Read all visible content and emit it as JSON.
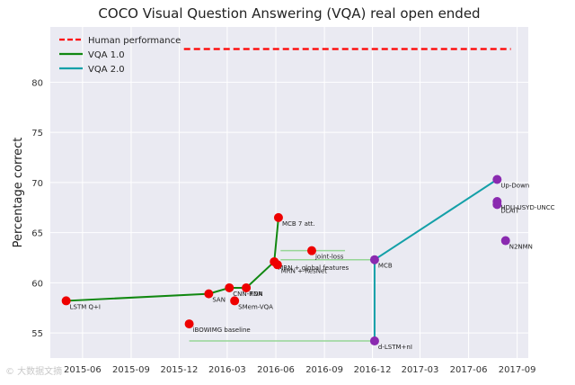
{
  "chart_data": {
    "type": "scatter",
    "title": "COCO Visual Question Answering (VQA) real open ended",
    "xlabel": "",
    "ylabel": "Percentage correct",
    "xlim": [
      "2015-04-01",
      "2017-09-22"
    ],
    "ylim": [
      52.5,
      85.5
    ],
    "x_ticks": [
      "2015-06",
      "2015-09",
      "2015-12",
      "2016-03",
      "2016-06",
      "2016-09",
      "2016-12",
      "2017-03",
      "2017-06",
      "2017-09"
    ],
    "y_ticks": [
      55,
      60,
      65,
      70,
      75,
      80
    ],
    "human_performance": {
      "label": "Human performance",
      "value": 83.3,
      "x_range": [
        "2015-12-10",
        "2017-08-20"
      ],
      "color": "#ff0000"
    },
    "legend": [
      {
        "label": "Human performance",
        "style": "dashed",
        "color": "#ff0000"
      },
      {
        "label": "VQA 1.0",
        "style": "solid",
        "color": "#118811"
      },
      {
        "label": "VQA 2.0",
        "style": "solid",
        "color": "#14a0a8"
      }
    ],
    "series": [
      {
        "name": "VQA 1.0",
        "color": "#118811",
        "line": [
          [
            "2015-05-01",
            58.2
          ],
          [
            "2016-01-26",
            58.9
          ],
          [
            "2016-03-05",
            59.5
          ],
          [
            "2016-04-06",
            59.5
          ],
          [
            "2016-05-29",
            62.1
          ],
          [
            "2016-06-06",
            66.5
          ]
        ],
        "points": [
          {
            "x": "2015-05-01",
            "y": 58.2,
            "label": "LSTM Q+I"
          },
          {
            "x": "2015-12-20",
            "y": 55.9,
            "label": "iBOWIMG baseline"
          },
          {
            "x": "2016-01-26",
            "y": 58.9,
            "label": "SAN"
          },
          {
            "x": "2016-03-05",
            "y": 59.5,
            "label": "CNN-RNN"
          },
          {
            "x": "2016-03-15",
            "y": 58.2,
            "label": "SMem-VQA"
          },
          {
            "x": "2016-04-06",
            "y": 59.5,
            "label": "FDA"
          },
          {
            "x": "2016-05-29",
            "y": 62.1,
            "label": "MRN + global features"
          },
          {
            "x": "2016-06-04",
            "y": 61.8,
            "label": "MRN + ResNet"
          },
          {
            "x": "2016-06-06",
            "y": 66.5,
            "label": "MCB 7 att."
          },
          {
            "x": "2016-08-08",
            "y": 63.2,
            "label": "joint-loss"
          }
        ]
      },
      {
        "name": "VQA 2.0",
        "color": "#14a0a8",
        "line": [
          [
            "2016-12-05",
            54.2
          ],
          [
            "2016-12-05",
            62.3
          ],
          [
            "2017-07-25",
            70.3
          ]
        ],
        "points": [
          {
            "x": "2016-12-05",
            "y": 54.2,
            "label": "d-LSTM+nI"
          },
          {
            "x": "2016-12-05",
            "y": 62.3,
            "label": "MCB"
          },
          {
            "x": "2017-07-25",
            "y": 70.3,
            "label": "Up-Down"
          },
          {
            "x": "2017-07-25",
            "y": 68.1,
            "label": "HDU-USYD-UNCC"
          },
          {
            "x": "2017-07-25",
            "y": 67.8,
            "label": "DLAIT"
          },
          {
            "x": "2017-08-10",
            "y": 64.2,
            "label": "N2NMN"
          }
        ]
      }
    ],
    "error_bars": [
      {
        "y": 63.2,
        "x_range": [
          "2016-06-10",
          "2016-10-10"
        ]
      },
      {
        "y": 62.3,
        "x_range": [
          "2016-06-10",
          "2016-12-05"
        ]
      },
      {
        "y": 54.2,
        "x_range": [
          "2015-12-20",
          "2016-12-05"
        ]
      }
    ]
  },
  "watermark": "© 大数据文摘"
}
